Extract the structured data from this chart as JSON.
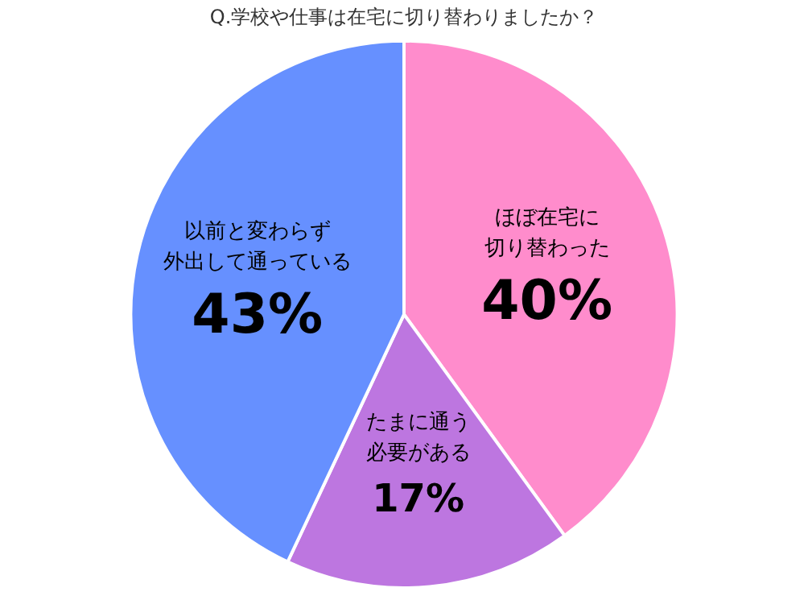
{
  "chart_data": {
    "type": "pie",
    "title": "Q.学校や仕事は在宅に切り替わりましたか？",
    "categories": [
      "ほぼ在宅に切り替わった",
      "たまに通う必要がある",
      "以前と変わらず外出して通っている"
    ],
    "values": [
      40,
      17,
      43
    ],
    "colors": [
      "#ff8ccc",
      "#bd76e0",
      "#6690ff"
    ],
    "value_labels": [
      "40%",
      "17%",
      "43%"
    ],
    "legend": false
  }
}
